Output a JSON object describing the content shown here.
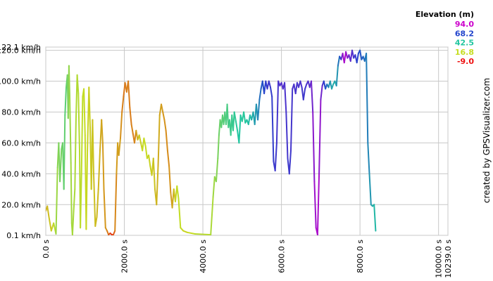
{
  "chart_data": {
    "type": "line",
    "xlabel": "",
    "ylabel": "",
    "xlim": [
      0,
      10239
    ],
    "ylim": [
      0.1,
      122.1
    ],
    "x_ticks": [
      {
        "value": 0,
        "label": "0.0 s"
      },
      {
        "value": 2000,
        "label": "2000.0 s"
      },
      {
        "value": 4000,
        "label": "4000.0 s"
      },
      {
        "value": 6000,
        "label": "6000.0 s"
      },
      {
        "value": 8000,
        "label": "8000.0 s"
      },
      {
        "value": 10000,
        "label": "10000.0 s"
      },
      {
        "value": 10239,
        "label": "10239.0 s"
      }
    ],
    "y_ticks": [
      {
        "value": 0.1,
        "label": "0.1 km/h"
      },
      {
        "value": 20,
        "label": "20.0 km/h"
      },
      {
        "value": 40,
        "label": "40.0 km/h"
      },
      {
        "value": 60,
        "label": "60.0 km/h"
      },
      {
        "value": 80,
        "label": "80.0 km/h"
      },
      {
        "value": 100,
        "label": "100.0 km/h"
      },
      {
        "value": 120,
        "label": "120.0 km/h"
      },
      {
        "value": 122.1,
        "label": "122.1 km/h"
      }
    ],
    "grid": true,
    "color_scale": {
      "title": "Elevation (m)",
      "legend_placement": "top-right",
      "stops": [
        {
          "label": "94.0",
          "value": 94.0,
          "color": "#cc00cc"
        },
        {
          "label": "68.2",
          "value": 68.2,
          "color": "#2244cc"
        },
        {
          "label": "42.5",
          "value": 42.5,
          "color": "#22c6a0"
        },
        {
          "label": "16.8",
          "value": 16.8,
          "color": "#c6dd22"
        },
        {
          "label": "-9.0",
          "value": -9.0,
          "color": "#ee1111"
        }
      ]
    },
    "series": [
      {
        "points": [
          [
            0,
            16,
            10
          ],
          [
            40,
            19,
            12
          ],
          [
            80,
            12,
            13
          ],
          [
            140,
            3,
            14
          ],
          [
            200,
            8,
            16
          ],
          [
            260,
            1,
            22
          ],
          [
            300,
            44,
            25
          ],
          [
            330,
            60,
            28
          ],
          [
            360,
            35,
            29
          ],
          [
            400,
            56,
            30
          ],
          [
            430,
            60,
            31
          ],
          [
            460,
            30,
            32
          ],
          [
            490,
            78,
            33
          ],
          [
            520,
            96,
            34
          ],
          [
            550,
            104,
            30
          ],
          [
            570,
            76,
            28
          ],
          [
            590,
            110,
            26
          ],
          [
            610,
            90,
            24
          ],
          [
            640,
            47,
            23
          ],
          [
            660,
            8,
            22
          ],
          [
            680,
            0.5,
            22
          ],
          [
            710,
            16,
            22
          ],
          [
            740,
            30,
            21
          ],
          [
            770,
            75,
            21
          ],
          [
            800,
            104,
            20
          ],
          [
            830,
            92,
            20
          ],
          [
            860,
            55,
            19
          ],
          [
            880,
            5,
            19
          ],
          [
            910,
            40,
            18
          ],
          [
            940,
            90,
            18
          ],
          [
            970,
            95,
            17
          ],
          [
            1000,
            65,
            17
          ],
          [
            1030,
            4,
            16
          ],
          [
            1060,
            55,
            16
          ],
          [
            1100,
            96,
            15
          ],
          [
            1130,
            70,
            15
          ],
          [
            1160,
            30,
            14
          ],
          [
            1190,
            75,
            14
          ],
          [
            1220,
            40,
            13
          ],
          [
            1260,
            6,
            13
          ],
          [
            1300,
            12,
            12
          ],
          [
            1340,
            30,
            12
          ],
          [
            1380,
            55,
            11
          ],
          [
            1420,
            75,
            10
          ],
          [
            1450,
            60,
            9
          ],
          [
            1480,
            30,
            8
          ],
          [
            1520,
            5,
            8
          ],
          [
            1560,
            3,
            7
          ],
          [
            1600,
            0.5,
            2
          ],
          [
            1640,
            1.5,
            -2
          ],
          [
            1680,
            0.5,
            -6
          ],
          [
            1720,
            0.5,
            -3
          ],
          [
            1760,
            3,
            4
          ],
          [
            1800,
            40,
            8
          ],
          [
            1830,
            60,
            9
          ],
          [
            1860,
            52,
            10
          ],
          [
            1900,
            63,
            8
          ],
          [
            1940,
            80,
            6
          ],
          [
            1980,
            90,
            4
          ],
          [
            2020,
            99,
            4
          ],
          [
            2060,
            93,
            5
          ],
          [
            2100,
            100,
            5
          ],
          [
            2140,
            83,
            4
          ],
          [
            2180,
            72,
            5
          ],
          [
            2220,
            66,
            6
          ],
          [
            2260,
            60,
            4
          ],
          [
            2300,
            68,
            8
          ],
          [
            2340,
            62,
            12
          ],
          [
            2380,
            65,
            14
          ],
          [
            2420,
            60,
            15
          ],
          [
            2460,
            55,
            16
          ],
          [
            2500,
            63,
            17
          ],
          [
            2540,
            58,
            17
          ],
          [
            2580,
            50,
            16
          ],
          [
            2620,
            52,
            16
          ],
          [
            2660,
            45,
            15
          ],
          [
            2700,
            39,
            15
          ],
          [
            2740,
            50,
            14
          ],
          [
            2780,
            30,
            13
          ],
          [
            2820,
            20,
            12
          ],
          [
            2860,
            45,
            11
          ],
          [
            2900,
            78,
            10
          ],
          [
            2940,
            85,
            9
          ],
          [
            2980,
            80,
            8
          ],
          [
            3020,
            75,
            8
          ],
          [
            3060,
            68,
            7
          ],
          [
            3100,
            55,
            6
          ],
          [
            3140,
            45,
            7
          ],
          [
            3180,
            28,
            8
          ],
          [
            3220,
            18,
            9
          ],
          [
            3260,
            30,
            12
          ],
          [
            3300,
            22,
            15
          ],
          [
            3340,
            32,
            17
          ],
          [
            3380,
            24,
            18
          ],
          [
            3430,
            5,
            17
          ],
          [
            3500,
            3,
            16
          ],
          [
            3600,
            2,
            15
          ],
          [
            3800,
            1,
            18
          ],
          [
            4200,
            0.5,
            20
          ],
          [
            4260,
            25,
            22
          ],
          [
            4300,
            38,
            24
          ],
          [
            4340,
            35,
            26
          ],
          [
            4380,
            50,
            28
          ],
          [
            4410,
            65,
            30
          ],
          [
            4440,
            75,
            32
          ],
          [
            4470,
            70,
            33
          ],
          [
            4500,
            78,
            34
          ],
          [
            4530,
            72,
            34
          ],
          [
            4560,
            80,
            35
          ],
          [
            4590,
            72,
            36
          ],
          [
            4620,
            85,
            36
          ],
          [
            4650,
            70,
            37
          ],
          [
            4680,
            75,
            38
          ],
          [
            4710,
            65,
            38
          ],
          [
            4740,
            78,
            39
          ],
          [
            4770,
            68,
            39
          ],
          [
            4800,
            80,
            40
          ],
          [
            4840,
            74,
            41
          ],
          [
            4880,
            68,
            42
          ],
          [
            4920,
            60,
            43
          ],
          [
            4960,
            78,
            42
          ],
          [
            5000,
            74,
            42
          ],
          [
            5040,
            80,
            41
          ],
          [
            5080,
            73,
            42
          ],
          [
            5120,
            75,
            43
          ],
          [
            5160,
            72,
            44
          ],
          [
            5200,
            78,
            45
          ],
          [
            5240,
            75,
            46
          ],
          [
            5280,
            80,
            48
          ],
          [
            5320,
            72,
            50
          ],
          [
            5360,
            85,
            52
          ],
          [
            5400,
            75,
            54
          ],
          [
            5440,
            88,
            58
          ],
          [
            5480,
            95,
            62
          ],
          [
            5520,
            100,
            66
          ],
          [
            5560,
            92,
            68
          ],
          [
            5600,
            100,
            70
          ],
          [
            5640,
            95,
            72
          ],
          [
            5680,
            100,
            73
          ],
          [
            5720,
            96,
            72
          ],
          [
            5760,
            90,
            70
          ],
          [
            5800,
            48,
            72
          ],
          [
            5840,
            42,
            72
          ],
          [
            5880,
            60,
            73
          ],
          [
            5920,
            100,
            74
          ],
          [
            5960,
            97,
            75
          ],
          [
            6000,
            99,
            76
          ],
          [
            6040,
            95,
            76
          ],
          [
            6080,
            99,
            75
          ],
          [
            6120,
            80,
            74
          ],
          [
            6160,
            50,
            73
          ],
          [
            6200,
            40,
            72
          ],
          [
            6240,
            55,
            73
          ],
          [
            6280,
            95,
            74
          ],
          [
            6320,
            98,
            75
          ],
          [
            6360,
            92,
            74
          ],
          [
            6400,
            99,
            74
          ],
          [
            6440,
            96,
            74
          ],
          [
            6480,
            100,
            75
          ],
          [
            6520,
            96,
            74
          ],
          [
            6560,
            88,
            72
          ],
          [
            6600,
            95,
            73
          ],
          [
            6640,
            98,
            74
          ],
          [
            6680,
            100,
            75
          ],
          [
            6720,
            96,
            76
          ],
          [
            6760,
            100,
            78
          ],
          [
            6800,
            80,
            82
          ],
          [
            6840,
            35,
            86
          ],
          [
            6880,
            5,
            88
          ],
          [
            6920,
            0.5,
            90
          ],
          [
            6960,
            40,
            88
          ],
          [
            7000,
            88,
            82
          ],
          [
            7040,
            97,
            78
          ],
          [
            7080,
            100,
            72
          ],
          [
            7120,
            95,
            66
          ],
          [
            7160,
            98,
            60
          ],
          [
            7200,
            96,
            55
          ],
          [
            7240,
            100,
            52
          ],
          [
            7280,
            95,
            50
          ],
          [
            7320,
            98,
            48
          ],
          [
            7360,
            100,
            47
          ],
          [
            7400,
            97,
            50
          ],
          [
            7440,
            110,
            55
          ],
          [
            7480,
            116,
            62
          ],
          [
            7520,
            114,
            72
          ],
          [
            7560,
            118,
            84
          ],
          [
            7600,
            112,
            90
          ],
          [
            7640,
            119,
            88
          ],
          [
            7680,
            115,
            84
          ],
          [
            7720,
            117,
            80
          ],
          [
            7760,
            113,
            78
          ],
          [
            7800,
            120,
            76
          ],
          [
            7840,
            115,
            74
          ],
          [
            7880,
            117,
            72
          ],
          [
            7920,
            112,
            70
          ],
          [
            7960,
            118,
            68
          ],
          [
            8000,
            120,
            66
          ],
          [
            8040,
            114,
            64
          ],
          [
            8080,
            116,
            62
          ],
          [
            8120,
            113,
            60
          ],
          [
            8160,
            118,
            58
          ],
          [
            8200,
            60,
            56
          ],
          [
            8240,
            40,
            54
          ],
          [
            8280,
            20,
            50
          ],
          [
            8320,
            19,
            48
          ],
          [
            8360,
            20,
            46
          ],
          [
            8400,
            3,
            45
          ]
        ]
      }
    ]
  },
  "credit": "created by GPSVisualizer.com"
}
